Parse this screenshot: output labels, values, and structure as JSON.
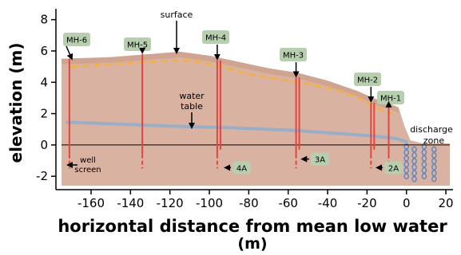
{
  "diagram": {
    "xlabel_line1": "horizontal distance from mean low water",
    "xlabel_line2": "(m)",
    "ylabel": "elevation (m)",
    "x_ticks": [
      "-160",
      "-140",
      "-120",
      "-100",
      "-80",
      "-60",
      "-40",
      "-20",
      "0",
      "20"
    ],
    "x_tick_values": [
      -160,
      -140,
      -120,
      -100,
      -80,
      -60,
      -40,
      -20,
      0,
      20
    ],
    "y_ticks": [
      "8",
      "6",
      "4",
      "2",
      "0",
      "-2"
    ],
    "y_tick_values": [
      8,
      6,
      4,
      2,
      0,
      -2
    ],
    "xlim": [
      -175,
      22
    ],
    "ylim": [
      -2.6,
      9
    ],
    "annotations": {
      "surface": "surface",
      "water_table_line1": "water",
      "water_table_line2": "table",
      "well_screen_line1": "well",
      "well_screen_line2": "screen",
      "discharge_line1": "discharge",
      "discharge_line2": "zone"
    },
    "surface_profile": [
      [
        -175,
        5.5
      ],
      [
        -150,
        5.6
      ],
      [
        -130,
        5.8
      ],
      [
        -115,
        5.95
      ],
      [
        -100,
        5.7
      ],
      [
        -85,
        5.3
      ],
      [
        -70,
        4.9
      ],
      [
        -55,
        4.6
      ],
      [
        -40,
        4.1
      ],
      [
        -25,
        3.45
      ],
      [
        -15,
        2.9
      ],
      [
        -8,
        2.6
      ],
      [
        -4,
        2.4
      ],
      [
        -1,
        1.2
      ],
      [
        2,
        0.3
      ],
      [
        8,
        0.1
      ],
      [
        22,
        0.1
      ]
    ],
    "dashed_layer": [
      [
        -170,
        5.0
      ],
      [
        -150,
        5.15
      ],
      [
        -125,
        5.35
      ],
      [
        -110,
        5.4
      ],
      [
        -95,
        5.05
      ],
      [
        -80,
        4.5
      ],
      [
        -65,
        4.2
      ],
      [
        -50,
        3.9
      ],
      [
        -35,
        3.5
      ],
      [
        -25,
        3.05
      ],
      [
        -18,
        2.55
      ],
      [
        -12,
        2.2
      ],
      [
        -7,
        2.0
      ]
    ],
    "water_table": [
      [
        -172,
        1.45
      ],
      [
        -150,
        1.35
      ],
      [
        -120,
        1.2
      ],
      [
        -90,
        1.1
      ],
      [
        -60,
        0.95
      ],
      [
        -40,
        0.78
      ],
      [
        -25,
        0.65
      ],
      [
        -15,
        0.55
      ],
      [
        -5,
        0.4
      ],
      [
        0,
        0.2
      ]
    ],
    "wells": [
      {
        "label": "MH-6",
        "x": -171,
        "top": 5.5,
        "bottom": -1.5
      },
      {
        "label": "MH-5",
        "x": -134,
        "top": 5.8,
        "bottom": -1.5
      },
      {
        "label": "MH-4",
        "x": -96,
        "top": 5.4,
        "bottom": -1.5
      },
      {
        "label": "MH-3",
        "x": -56,
        "top": 4.3,
        "bottom": -1.5
      },
      {
        "label": "MH-2",
        "x": -18,
        "top": 2.7,
        "bottom": -1.5
      },
      {
        "label": "MH-1",
        "x": -9,
        "top": 2.6,
        "bottom": -1.1
      }
    ],
    "well_tags": [
      {
        "label": "4A",
        "x": -93.5,
        "level": -1.45
      },
      {
        "label": "3A",
        "x": -54.5,
        "level": -0.9
      },
      {
        "label": "2A",
        "x": -16.5,
        "level": -1.45
      }
    ],
    "colors": {
      "soil": "#d9b2a1",
      "surface_band": "#cfa592",
      "dashed_layer": "#f0b14c",
      "water_table": "#9aaec6",
      "well_line": "#e0463f",
      "label_box": "#b7cfae",
      "bubble": "#5b86bf"
    }
  }
}
